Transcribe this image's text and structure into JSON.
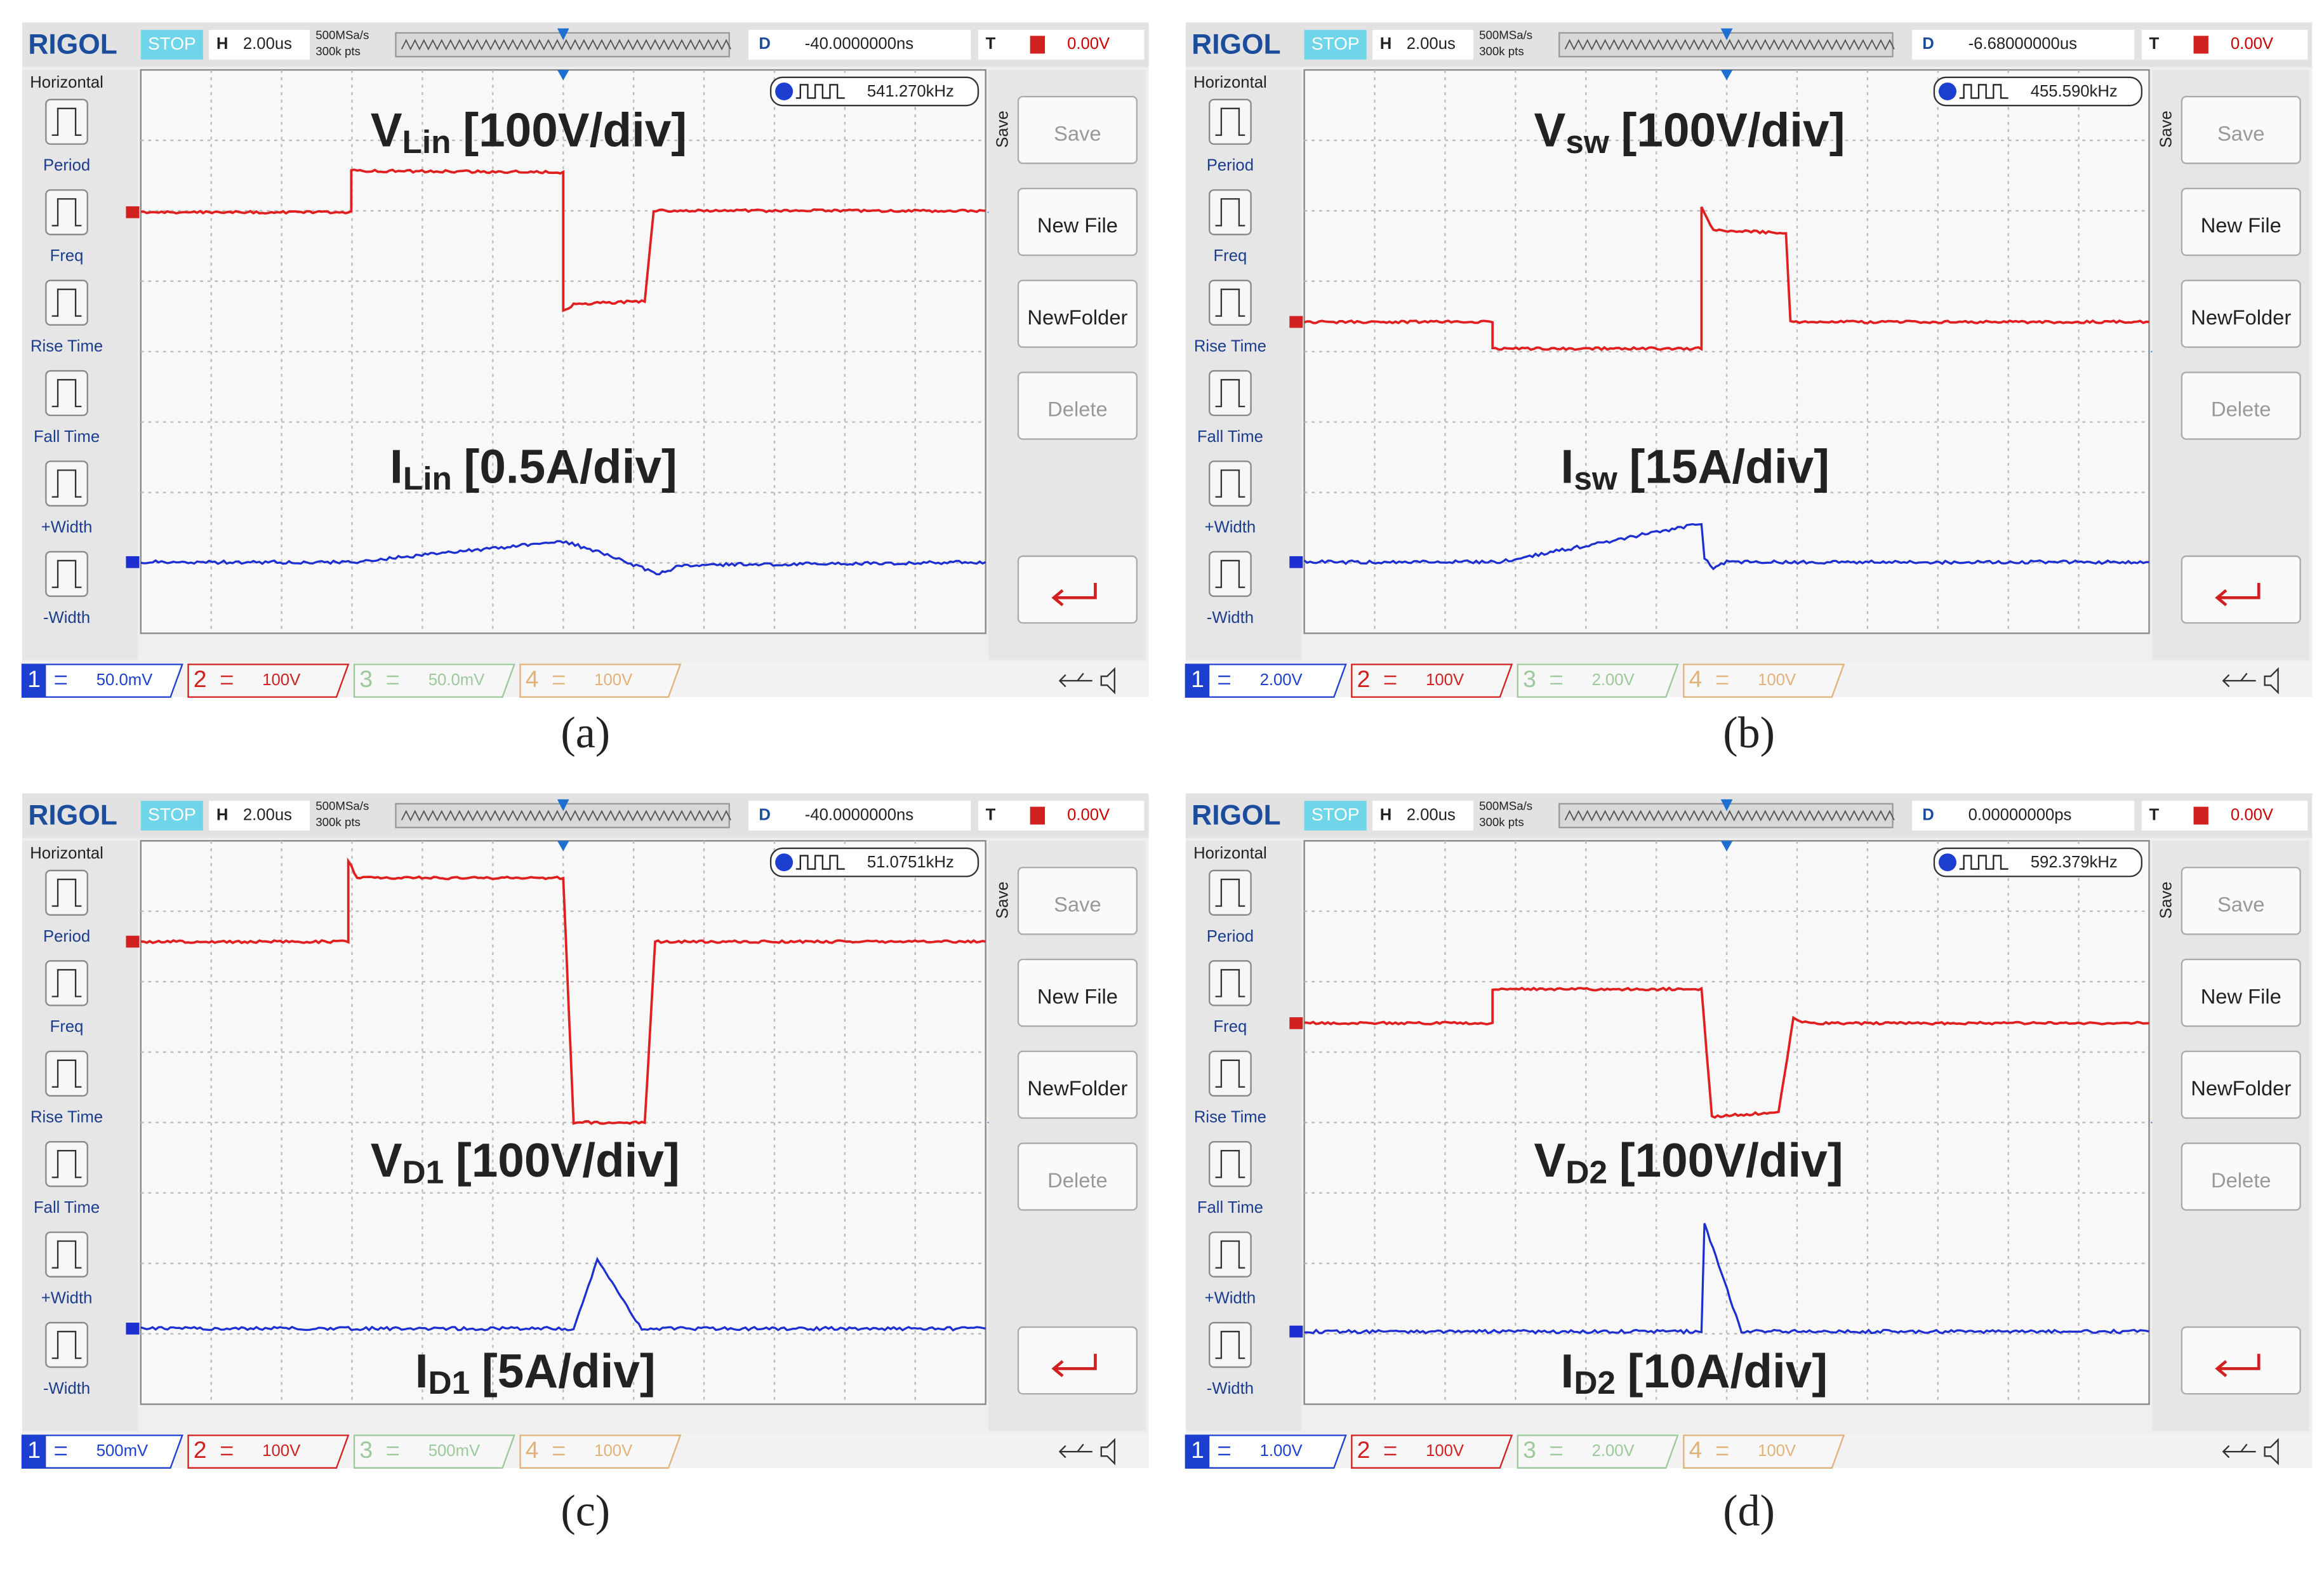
{
  "panels": [
    {
      "brand": "RIGOL",
      "status": "STOP",
      "timebase_label": "H",
      "timebase": "2.00us",
      "sample_rate": "500MSa/s",
      "memory_depth": "300k pts",
      "delay_label": "D",
      "delay": "-40.0000000ns",
      "trigger_label": "T",
      "trigger_level": "0.00V",
      "menu_title": "Horizontal",
      "menu_items": [
        "Period",
        "Freq",
        "Rise Time",
        "Fall Time",
        "+Width",
        "-Width"
      ],
      "save_title": "Save",
      "save_buttons": [
        "Save",
        "New File",
        "NewFolder",
        "Delete"
      ],
      "frequency": "541.270kHz",
      "channels": [
        {
          "number": "1",
          "scale": "50.0mV"
        },
        {
          "number": "2",
          "scale": "100V"
        },
        {
          "number": "3",
          "scale": "50.0mV"
        },
        {
          "number": "4",
          "scale": "100V"
        }
      ],
      "trace_labels": [
        {
          "symbol": "V",
          "subscript": "Lin",
          "scale": "[100V/div]"
        },
        {
          "symbol": "I",
          "subscript": "Lin",
          "scale": "[0.5A/div]"
        }
      ],
      "caption": "(a)"
    },
    {
      "brand": "RIGOL",
      "status": "STOP",
      "timebase_label": "H",
      "timebase": "2.00us",
      "sample_rate": "500MSa/s",
      "memory_depth": "300k pts",
      "delay_label": "D",
      "delay": "-6.68000000us",
      "trigger_label": "T",
      "trigger_level": "0.00V",
      "menu_title": "Horizontal",
      "menu_items": [
        "Period",
        "Freq",
        "Rise Time",
        "Fall Time",
        "+Width",
        "-Width"
      ],
      "save_title": "Save",
      "save_buttons": [
        "Save",
        "New File",
        "NewFolder",
        "Delete"
      ],
      "frequency": "455.590kHz",
      "channels": [
        {
          "number": "1",
          "scale": "2.00V"
        },
        {
          "number": "2",
          "scale": "100V"
        },
        {
          "number": "3",
          "scale": "2.00V"
        },
        {
          "number": "4",
          "scale": "100V"
        }
      ],
      "trace_labels": [
        {
          "symbol": "V",
          "subscript": "sw",
          "scale": "[100V/div]"
        },
        {
          "symbol": "I",
          "subscript": "sw",
          "scale": "[15A/div]"
        }
      ],
      "caption": "(b)"
    },
    {
      "brand": "RIGOL",
      "status": "STOP",
      "timebase_label": "H",
      "timebase": "2.00us",
      "sample_rate": "500MSa/s",
      "memory_depth": "300k pts",
      "delay_label": "D",
      "delay": "-40.0000000ns",
      "trigger_label": "T",
      "trigger_level": "0.00V",
      "menu_title": "Horizontal",
      "menu_items": [
        "Period",
        "Freq",
        "Rise Time",
        "Fall Time",
        "+Width",
        "-Width"
      ],
      "save_title": "Save",
      "save_buttons": [
        "Save",
        "New File",
        "NewFolder",
        "Delete"
      ],
      "frequency": "51.0751kHz",
      "channels": [
        {
          "number": "1",
          "scale": "500mV"
        },
        {
          "number": "2",
          "scale": "100V"
        },
        {
          "number": "3",
          "scale": "500mV"
        },
        {
          "number": "4",
          "scale": "100V"
        }
      ],
      "trace_labels": [
        {
          "symbol": "V",
          "subscript": "D1",
          "scale": "[100V/div]"
        },
        {
          "symbol": "I",
          "subscript": "D1",
          "scale": "[5A/div]"
        }
      ],
      "caption": "(c)"
    },
    {
      "brand": "RIGOL",
      "status": "STOP",
      "timebase_label": "H",
      "timebase": "2.00us",
      "sample_rate": "500MSa/s",
      "memory_depth": "300k pts",
      "delay_label": "D",
      "delay": "0.00000000ps",
      "trigger_label": "T",
      "trigger_level": "0.00V",
      "menu_title": "Horizontal",
      "menu_items": [
        "Period",
        "Freq",
        "Rise Time",
        "Fall Time",
        "+Width",
        "-Width"
      ],
      "save_title": "Save",
      "save_buttons": [
        "Save",
        "New File",
        "NewFolder",
        "Delete"
      ],
      "frequency": "592.379kHz",
      "channels": [
        {
          "number": "1",
          "scale": "1.00V"
        },
        {
          "number": "2",
          "scale": "100V"
        },
        {
          "number": "3",
          "scale": "2.00V"
        },
        {
          "number": "4",
          "scale": "100V"
        }
      ],
      "trace_labels": [
        {
          "symbol": "V",
          "subscript": "D2",
          "scale": "[100V/div]"
        },
        {
          "symbol": "I",
          "subscript": "D2",
          "scale": "[10A/div]"
        }
      ],
      "caption": "(d)"
    }
  ]
}
